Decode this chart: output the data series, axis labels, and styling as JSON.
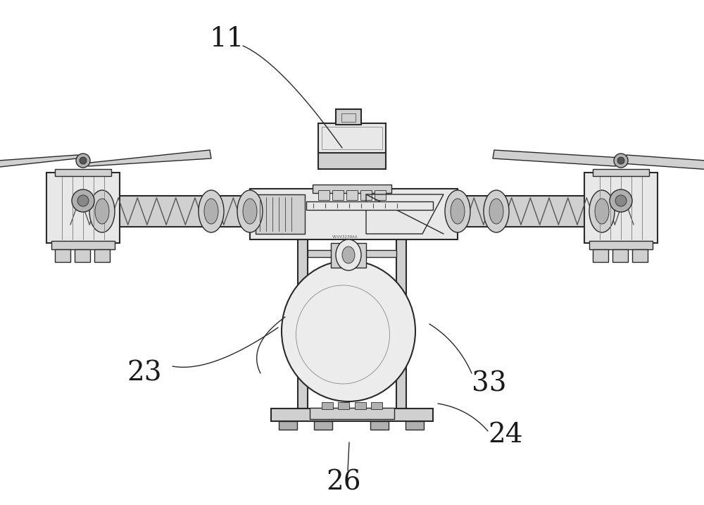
{
  "bg_color": "#ffffff",
  "line_color": "#2a2a2a",
  "gray1": "#e8e8e8",
  "gray2": "#d0d0d0",
  "gray3": "#b0b0b0",
  "gray4": "#888888",
  "gray5": "#555555",
  "fig_width": 10.0,
  "fig_height": 7.17,
  "dpi": 100,
  "label_fontsize": 28,
  "label_color": "#1a1a1a",
  "lw_main": 1.5,
  "lw_med": 1.0,
  "lw_thin": 0.6
}
